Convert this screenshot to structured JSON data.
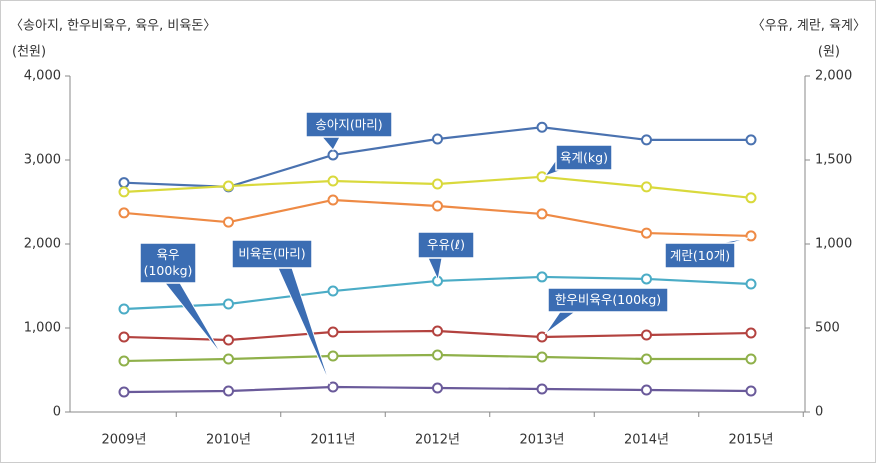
{
  "chart_data": {
    "type": "line",
    "left_title": "〈송아지, 한우비육우, 육우, 비육돈〉",
    "left_unit": "(천원)",
    "right_title": "〈우유, 계란, 육계〉",
    "right_unit": "(원)",
    "categories": [
      "2009년",
      "2010년",
      "2011년",
      "2012년",
      "2013년",
      "2014년",
      "2015년"
    ],
    "ylim": [
      0,
      4000
    ],
    "yticks": [
      0,
      {
        "value": 1000,
        "label": "1,000"
      },
      {
        "value": 2000,
        "label": "2,000"
      },
      {
        "value": 3000,
        "label": "3,000"
      },
      {
        "value": 4000,
        "label": "4,000"
      }
    ],
    "y2lim": [
      0,
      2000
    ],
    "y2ticks": [
      0,
      500,
      {
        "value": 1000,
        "label": "1,000"
      },
      {
        "value": 1500,
        "label": "1,500"
      },
      {
        "value": 2000,
        "label": "2,000"
      }
    ],
    "series": [
      {
        "name": "송아지(마리)",
        "color": "#4a72b0",
        "values": [
          2730,
          2680,
          3060,
          3250,
          3390,
          3240,
          3240
        ]
      },
      {
        "name": "육계(kg)",
        "color": "#d9d93c",
        "axis": "y2",
        "values": [
          1310,
          1345,
          1375,
          1357,
          1400,
          1340,
          1275
        ]
      },
      {
        "name": "계란(10개)",
        "color": "#ee8a45",
        "axis": "y2",
        "values": [
          1185,
          1130,
          1262,
          1226,
          1179,
          1065,
          1048
        ]
      },
      {
        "name": "우유(ℓ)",
        "color": "#4bacc6",
        "axis": "y2",
        "values": [
          613,
          643,
          720,
          780,
          804,
          792,
          762
        ]
      },
      {
        "name": "한우비육우(100kg)",
        "color": "#b3423f",
        "values": [
          893,
          857,
          952,
          964,
          893,
          917,
          940
        ]
      },
      {
        "name": "육우(100kg)",
        "color": "#8fb04a",
        "values": [
          607,
          631,
          667,
          679,
          655,
          631,
          631
        ]
      },
      {
        "name": "비육돈(마리)",
        "color": "#6a5a9a",
        "values": [
          238,
          250,
          298,
          286,
          274,
          262,
          250
        ]
      }
    ]
  }
}
